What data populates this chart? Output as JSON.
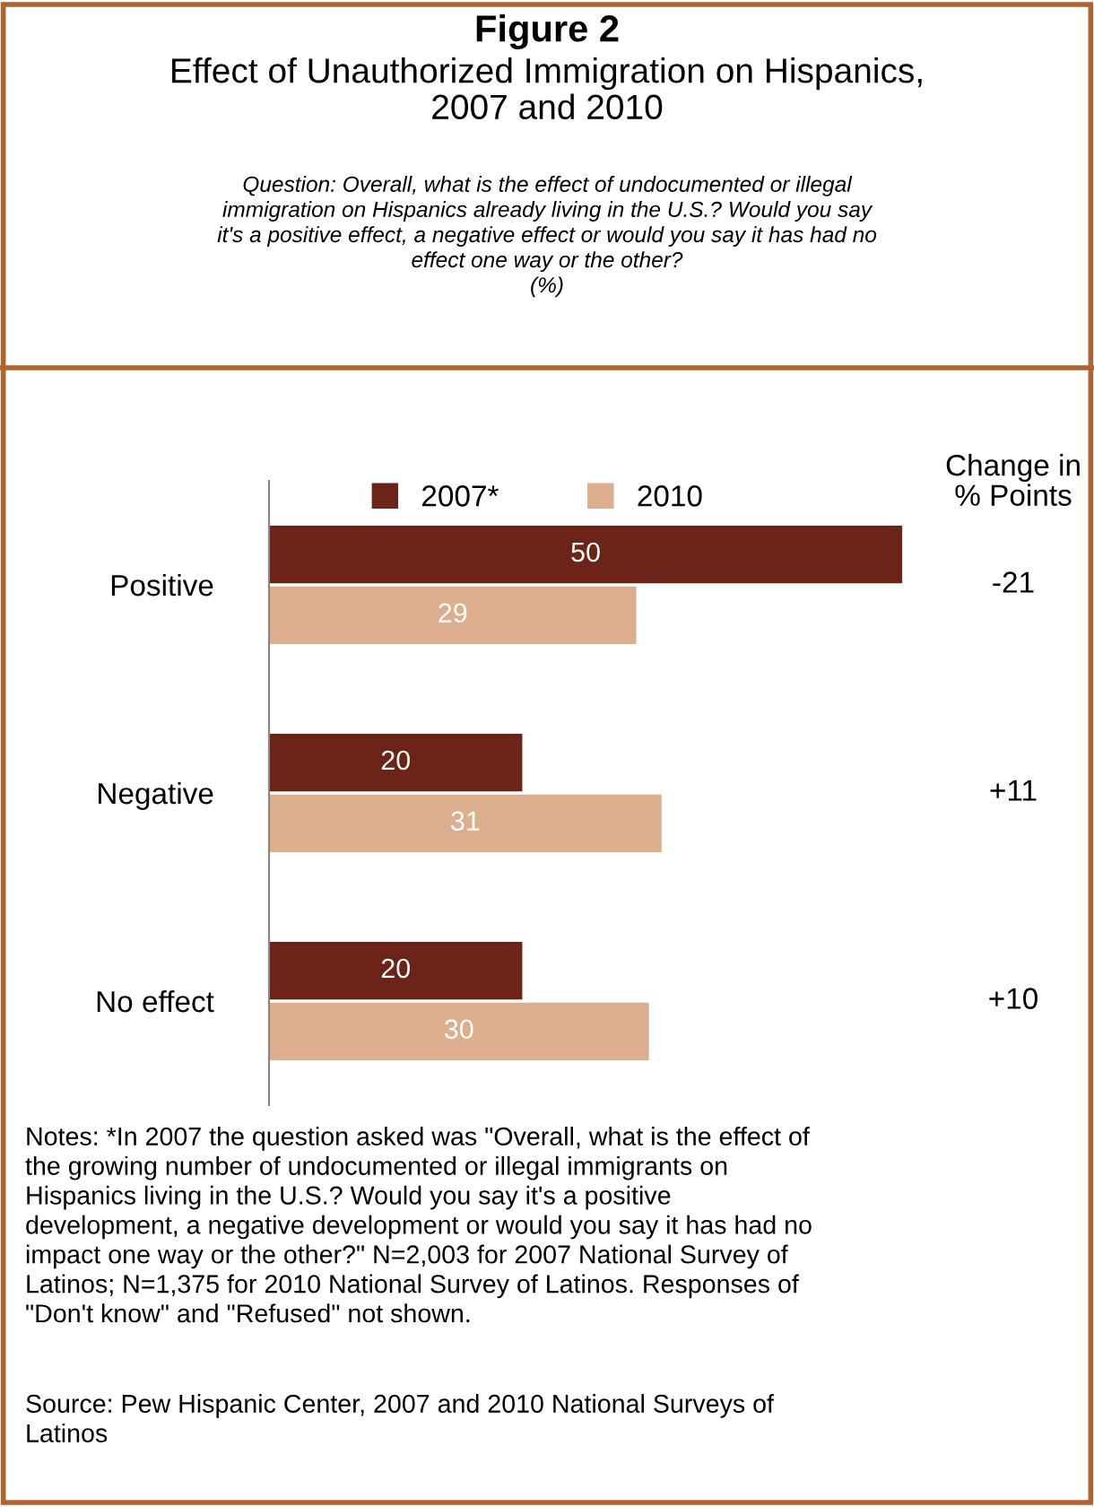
{
  "chart_data": {
    "type": "bar",
    "orientation": "horizontal",
    "title": "Figure 2",
    "subtitle": "Effect of Unauthorized Immigration on Hispanics,\n2007 and 2010\nQuestion: Overall, what is the effect of undocumented or illegal\nimmigration on Hispanics already living in the U.S.? Would you say\nit's a positive effect, a negative effect or would you say it has had no\neffect one way or the other?\n(%)",
    "categories": [
      "Positive",
      "Negative",
      "No effect"
    ],
    "series": [
      {
        "name": "2007*",
        "color": "#6b2417",
        "values": [
          50,
          20,
          20
        ]
      },
      {
        "name": "2010",
        "color": "#dcae8e",
        "values": [
          29,
          31,
          30
        ]
      }
    ],
    "data_labels": true,
    "legend": "top",
    "grid": false,
    "legend_title": "Change in\n% Points",
    "annotations": [
      "-21",
      "+11",
      "+10",
      "Notes: *In 2007 the question asked was \"Overall, what is the effect of\nthe growing number of undocumented or illegal immigrants on\nHispanics living in the U.S.? Would you say it's a positive\ndevelopment, a negative development or would you say it has had no\nimpact one way or the other?\" N=2,003 for 2007 National Survey of\nLatinos; N=1,375 for 2010 National Survey of Latinos. Responses of\n\"Don't know\" and \"Refused\" not shown.",
      "Source: Pew Hispanic Center, 2007 and 2010 National Surveys of\nLatinos"
    ]
  }
}
